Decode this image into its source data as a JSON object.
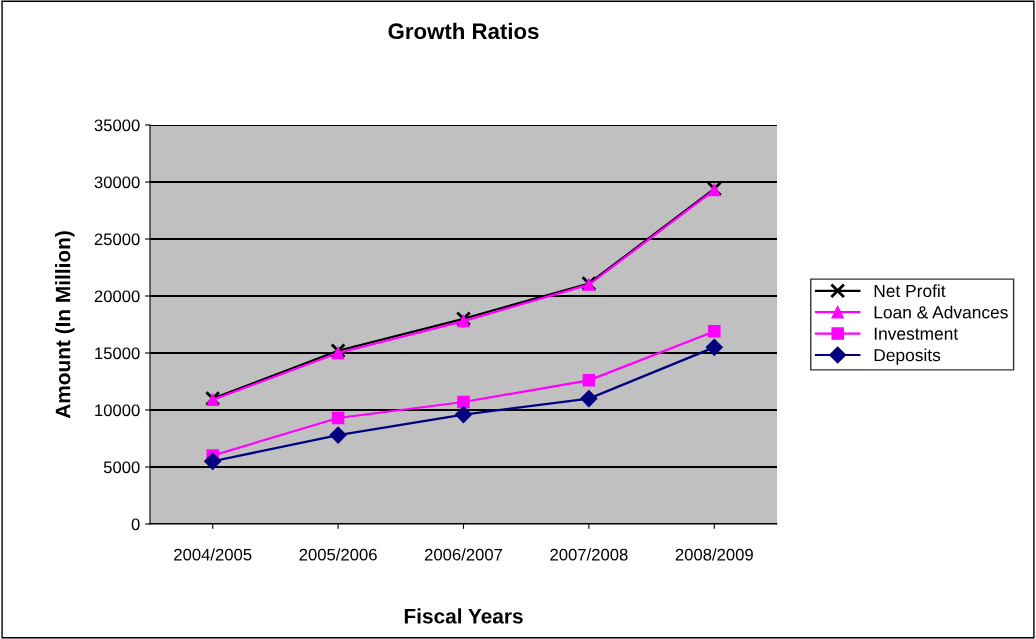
{
  "chart_data": {
    "type": "line",
    "title": "Growth Ratios",
    "xlabel": "Fiscal Years",
    "ylabel": "Amount (In Million)",
    "categories": [
      "2004/2005",
      "2005/2006",
      "2006/2007",
      "2007/2008",
      "2008/2009"
    ],
    "series": [
      {
        "name": "Net Profit",
        "color": "#000000",
        "marker": "cross",
        "values": [
          11000,
          15200,
          18000,
          21100,
          29400
        ]
      },
      {
        "name": "Loan & Advances",
        "color": "#ff00ff",
        "marker": "triangle",
        "values": [
          10900,
          15000,
          17800,
          21000,
          29300
        ]
      },
      {
        "name": "Investment",
        "color": "#ff00ff",
        "marker": "square",
        "values": [
          6000,
          9300,
          10700,
          12600,
          16900
        ]
      },
      {
        "name": "Deposits",
        "color": "#000080",
        "marker": "diamond",
        "values": [
          5500,
          7800,
          9600,
          11000,
          15500
        ]
      }
    ],
    "ylim": [
      0,
      35000
    ],
    "yticks": [
      0,
      5000,
      10000,
      15000,
      20000,
      25000,
      30000,
      35000
    ],
    "grid": "y",
    "legend": "right"
  }
}
